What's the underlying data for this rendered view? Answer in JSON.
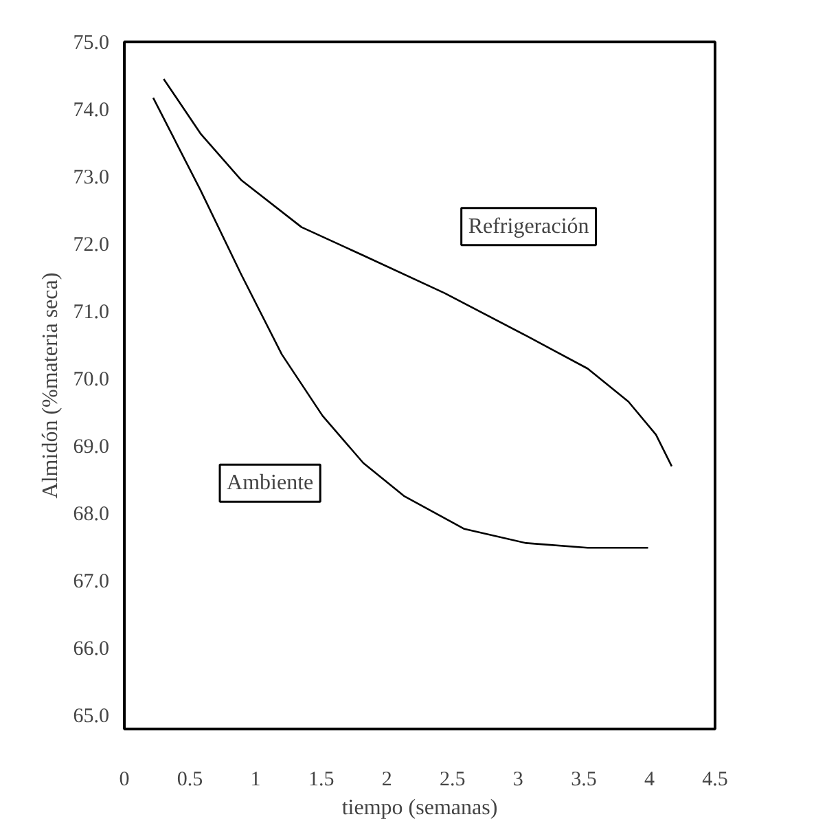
{
  "chart_data": {
    "type": "line",
    "xlabel": "tiempo (semanas)",
    "ylabel": "Almidón (%materia seca)",
    "series": [
      {
        "name": "Refrigeración",
        "color": "#000000",
        "x": [
          0.3,
          0.58,
          0.89,
          1.35,
          1.82,
          2.44,
          3.06,
          3.53,
          3.84,
          4.05,
          4.17
        ],
        "values": [
          74.45,
          73.64,
          72.95,
          72.25,
          71.83,
          71.27,
          70.64,
          70.15,
          69.66,
          69.17,
          68.7
        ]
      },
      {
        "name": "Ambiente",
        "color": "#000000",
        "x": [
          0.22,
          0.58,
          0.89,
          1.2,
          1.51,
          1.82,
          2.13,
          2.59,
          3.06,
          3.53,
          3.99
        ],
        "values": [
          74.17,
          72.8,
          71.55,
          70.36,
          69.45,
          68.75,
          68.26,
          67.77,
          67.56,
          67.49,
          67.49
        ]
      }
    ],
    "xlim": [
      0,
      4.5
    ],
    "ylim": [
      64.8,
      75.0
    ],
    "xticks": [
      0,
      0.5,
      1,
      1.5,
      2,
      2.5,
      3,
      3.5,
      4,
      4.5
    ],
    "yticks": [
      {
        "value": 65,
        "label": "65.0"
      },
      {
        "value": 66,
        "label": "66.0"
      },
      {
        "value": 67,
        "label": "67.0"
      },
      {
        "value": 68,
        "label": "68.0"
      },
      {
        "value": 69,
        "label": "69.0"
      },
      {
        "value": 70,
        "label": "70.0"
      },
      {
        "value": 71,
        "label": "71.0"
      },
      {
        "value": 72,
        "label": "72.0"
      },
      {
        "value": 73,
        "label": "73.0"
      },
      {
        "value": 74,
        "label": "74.0"
      },
      {
        "value": 75,
        "label": "75.0"
      }
    ],
    "grid": false,
    "marker": "none",
    "line_style": "solid"
  }
}
